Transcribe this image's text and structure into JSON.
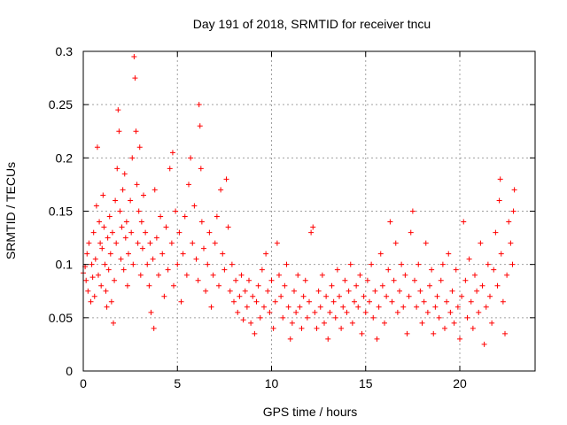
{
  "chart_data": {
    "type": "scatter",
    "title": "Day 191 of 2018, SRMTID for receiver tncu",
    "xlabel": "GPS time / hours",
    "ylabel": "SRMTID / TECUs",
    "xlim": [
      0,
      24
    ],
    "ylim": [
      0,
      0.3
    ],
    "xticks": [
      0,
      5,
      10,
      15,
      20
    ],
    "xtick_labels": [
      "0",
      "5",
      "10",
      "15",
      "20"
    ],
    "yticks": [
      0,
      0.05,
      0.1,
      0.15,
      0.2,
      0.25,
      0.3
    ],
    "ytick_labels": [
      "0",
      "0.05",
      "0.1",
      "0.15",
      "0.2",
      "0.25",
      "0.3"
    ],
    "grid": true,
    "legend": "none",
    "marker": "+",
    "series_color": "#ff0000",
    "points": [
      [
        0.0,
        0.092
      ],
      [
        0.1,
        0.098
      ],
      [
        0.15,
        0.085
      ],
      [
        0.2,
        0.11
      ],
      [
        0.25,
        0.075
      ],
      [
        0.3,
        0.12
      ],
      [
        0.4,
        0.065
      ],
      [
        0.45,
        0.1
      ],
      [
        0.5,
        0.088
      ],
      [
        0.55,
        0.13
      ],
      [
        0.6,
        0.07
      ],
      [
        0.65,
        0.105
      ],
      [
        0.7,
        0.155
      ],
      [
        0.75,
        0.21
      ],
      [
        0.8,
        0.09
      ],
      [
        0.85,
        0.14
      ],
      [
        0.9,
        0.12
      ],
      [
        0.95,
        0.08
      ],
      [
        1.0,
        0.115
      ],
      [
        1.05,
        0.165
      ],
      [
        1.1,
        0.135
      ],
      [
        1.15,
        0.1
      ],
      [
        1.2,
        0.075
      ],
      [
        1.25,
        0.06
      ],
      [
        1.3,
        0.125
      ],
      [
        1.35,
        0.095
      ],
      [
        1.4,
        0.145
      ],
      [
        1.45,
        0.11
      ],
      [
        1.5,
        0.065
      ],
      [
        1.55,
        0.13
      ],
      [
        1.6,
        0.045
      ],
      [
        1.65,
        0.085
      ],
      [
        1.7,
        0.16
      ],
      [
        1.75,
        0.12
      ],
      [
        1.8,
        0.19
      ],
      [
        1.85,
        0.245
      ],
      [
        1.9,
        0.225
      ],
      [
        1.95,
        0.15
      ],
      [
        2.0,
        0.105
      ],
      [
        2.05,
        0.135
      ],
      [
        2.1,
        0.17
      ],
      [
        2.15,
        0.095
      ],
      [
        2.2,
        0.185
      ],
      [
        2.25,
        0.125
      ],
      [
        2.3,
        0.14
      ],
      [
        2.35,
        0.08
      ],
      [
        2.4,
        0.11
      ],
      [
        2.5,
        0.16
      ],
      [
        2.55,
        0.13
      ],
      [
        2.6,
        0.2
      ],
      [
        2.65,
        0.1
      ],
      [
        2.7,
        0.295
      ],
      [
        2.75,
        0.275
      ],
      [
        2.8,
        0.225
      ],
      [
        2.85,
        0.175
      ],
      [
        2.9,
        0.12
      ],
      [
        2.95,
        0.15
      ],
      [
        3.0,
        0.21
      ],
      [
        3.05,
        0.09
      ],
      [
        3.1,
        0.14
      ],
      [
        3.15,
        0.115
      ],
      [
        3.2,
        0.165
      ],
      [
        3.3,
        0.13
      ],
      [
        3.4,
        0.1
      ],
      [
        3.5,
        0.08
      ],
      [
        3.55,
        0.12
      ],
      [
        3.6,
        0.055
      ],
      [
        3.7,
        0.105
      ],
      [
        3.75,
        0.04
      ],
      [
        3.8,
        0.17
      ],
      [
        3.9,
        0.125
      ],
      [
        4.0,
        0.09
      ],
      [
        4.1,
        0.145
      ],
      [
        4.2,
        0.11
      ],
      [
        4.3,
        0.07
      ],
      [
        4.4,
        0.135
      ],
      [
        4.5,
        0.095
      ],
      [
        4.6,
        0.19
      ],
      [
        4.7,
        0.12
      ],
      [
        4.75,
        0.205
      ],
      [
        4.8,
        0.08
      ],
      [
        4.9,
        0.15
      ],
      [
        5.0,
        0.1
      ],
      [
        5.1,
        0.13
      ],
      [
        5.2,
        0.065
      ],
      [
        5.3,
        0.11
      ],
      [
        5.4,
        0.145
      ],
      [
        5.5,
        0.09
      ],
      [
        5.6,
        0.175
      ],
      [
        5.7,
        0.2
      ],
      [
        5.8,
        0.12
      ],
      [
        5.9,
        0.155
      ],
      [
        6.0,
        0.105
      ],
      [
        6.1,
        0.085
      ],
      [
        6.15,
        0.25
      ],
      [
        6.2,
        0.23
      ],
      [
        6.25,
        0.19
      ],
      [
        6.3,
        0.14
      ],
      [
        6.4,
        0.115
      ],
      [
        6.5,
        0.075
      ],
      [
        6.6,
        0.1
      ],
      [
        6.7,
        0.13
      ],
      [
        6.8,
        0.06
      ],
      [
        6.9,
        0.09
      ],
      [
        7.0,
        0.12
      ],
      [
        7.1,
        0.145
      ],
      [
        7.2,
        0.08
      ],
      [
        7.3,
        0.17
      ],
      [
        7.4,
        0.11
      ],
      [
        7.5,
        0.095
      ],
      [
        7.6,
        0.18
      ],
      [
        7.7,
        0.135
      ],
      [
        7.8,
        0.075
      ],
      [
        7.9,
        0.1
      ],
      [
        8.0,
        0.065
      ],
      [
        8.1,
        0.085
      ],
      [
        8.2,
        0.055
      ],
      [
        8.3,
        0.07
      ],
      [
        8.4,
        0.09
      ],
      [
        8.5,
        0.048
      ],
      [
        8.6,
        0.075
      ],
      [
        8.7,
        0.06
      ],
      [
        8.8,
        0.085
      ],
      [
        8.9,
        0.045
      ],
      [
        9.0,
        0.07
      ],
      [
        9.1,
        0.035
      ],
      [
        9.2,
        0.065
      ],
      [
        9.3,
        0.08
      ],
      [
        9.4,
        0.05
      ],
      [
        9.5,
        0.095
      ],
      [
        9.6,
        0.06
      ],
      [
        9.7,
        0.11
      ],
      [
        9.8,
        0.075
      ],
      [
        9.9,
        0.055
      ],
      [
        10.0,
        0.085
      ],
      [
        10.1,
        0.04
      ],
      [
        10.2,
        0.065
      ],
      [
        10.3,
        0.12
      ],
      [
        10.4,
        0.09
      ],
      [
        10.5,
        0.07
      ],
      [
        10.6,
        0.05
      ],
      [
        10.7,
        0.08
      ],
      [
        10.8,
        0.1
      ],
      [
        10.9,
        0.06
      ],
      [
        11.0,
        0.03
      ],
      [
        11.1,
        0.045
      ],
      [
        11.2,
        0.075
      ],
      [
        11.3,
        0.055
      ],
      [
        11.4,
        0.09
      ],
      [
        11.5,
        0.06
      ],
      [
        11.6,
        0.04
      ],
      [
        11.7,
        0.07
      ],
      [
        11.8,
        0.085
      ],
      [
        11.9,
        0.05
      ],
      [
        12.0,
        0.065
      ],
      [
        12.1,
        0.13
      ],
      [
        12.2,
        0.135
      ],
      [
        12.3,
        0.055
      ],
      [
        12.4,
        0.04
      ],
      [
        12.5,
        0.075
      ],
      [
        12.6,
        0.06
      ],
      [
        12.7,
        0.09
      ],
      [
        12.8,
        0.045
      ],
      [
        12.9,
        0.07
      ],
      [
        13.0,
        0.03
      ],
      [
        13.1,
        0.055
      ],
      [
        13.2,
        0.08
      ],
      [
        13.3,
        0.065
      ],
      [
        13.4,
        0.05
      ],
      [
        13.5,
        0.095
      ],
      [
        13.6,
        0.07
      ],
      [
        13.7,
        0.04
      ],
      [
        13.8,
        0.06
      ],
      [
        13.9,
        0.085
      ],
      [
        14.0,
        0.055
      ],
      [
        14.1,
        0.075
      ],
      [
        14.2,
        0.1
      ],
      [
        14.3,
        0.045
      ],
      [
        14.4,
        0.065
      ],
      [
        14.5,
        0.08
      ],
      [
        14.6,
        0.06
      ],
      [
        14.7,
        0.09
      ],
      [
        14.8,
        0.035
      ],
      [
        14.9,
        0.07
      ],
      [
        15.0,
        0.055
      ],
      [
        15.1,
        0.085
      ],
      [
        15.2,
        0.065
      ],
      [
        15.3,
        0.1
      ],
      [
        15.4,
        0.05
      ],
      [
        15.5,
        0.075
      ],
      [
        15.6,
        0.03
      ],
      [
        15.7,
        0.06
      ],
      [
        15.8,
        0.11
      ],
      [
        15.9,
        0.08
      ],
      [
        16.0,
        0.045
      ],
      [
        16.1,
        0.07
      ],
      [
        16.2,
        0.095
      ],
      [
        16.3,
        0.14
      ],
      [
        16.4,
        0.065
      ],
      [
        16.5,
        0.085
      ],
      [
        16.6,
        0.12
      ],
      [
        16.7,
        0.055
      ],
      [
        16.8,
        0.075
      ],
      [
        16.9,
        0.1
      ],
      [
        17.0,
        0.06
      ],
      [
        17.1,
        0.09
      ],
      [
        17.2,
        0.035
      ],
      [
        17.3,
        0.07
      ],
      [
        17.4,
        0.13
      ],
      [
        17.5,
        0.15
      ],
      [
        17.6,
        0.085
      ],
      [
        17.7,
        0.06
      ],
      [
        17.8,
        0.1
      ],
      [
        17.9,
        0.075
      ],
      [
        18.0,
        0.045
      ],
      [
        18.1,
        0.065
      ],
      [
        18.2,
        0.12
      ],
      [
        18.3,
        0.055
      ],
      [
        18.4,
        0.08
      ],
      [
        18.5,
        0.095
      ],
      [
        18.6,
        0.035
      ],
      [
        18.7,
        0.06
      ],
      [
        18.8,
        0.07
      ],
      [
        18.9,
        0.05
      ],
      [
        19.0,
        0.085
      ],
      [
        19.1,
        0.1
      ],
      [
        19.2,
        0.04
      ],
      [
        19.3,
        0.065
      ],
      [
        19.4,
        0.11
      ],
      [
        19.5,
        0.055
      ],
      [
        19.6,
        0.075
      ],
      [
        19.7,
        0.045
      ],
      [
        19.8,
        0.095
      ],
      [
        19.9,
        0.06
      ],
      [
        20.0,
        0.03
      ],
      [
        20.1,
        0.07
      ],
      [
        20.2,
        0.14
      ],
      [
        20.3,
        0.085
      ],
      [
        20.4,
        0.05
      ],
      [
        20.5,
        0.105
      ],
      [
        20.6,
        0.065
      ],
      [
        20.7,
        0.04
      ],
      [
        20.8,
        0.09
      ],
      [
        20.9,
        0.075
      ],
      [
        21.0,
        0.055
      ],
      [
        21.1,
        0.12
      ],
      [
        21.2,
        0.08
      ],
      [
        21.3,
        0.025
      ],
      [
        21.4,
        0.06
      ],
      [
        21.5,
        0.1
      ],
      [
        21.6,
        0.07
      ],
      [
        21.7,
        0.045
      ],
      [
        21.8,
        0.095
      ],
      [
        21.9,
        0.13
      ],
      [
        22.0,
        0.08
      ],
      [
        22.1,
        0.16
      ],
      [
        22.15,
        0.18
      ],
      [
        22.2,
        0.11
      ],
      [
        22.3,
        0.065
      ],
      [
        22.4,
        0.035
      ],
      [
        22.5,
        0.09
      ],
      [
        22.6,
        0.14
      ],
      [
        22.7,
        0.12
      ],
      [
        22.8,
        0.1
      ],
      [
        22.85,
        0.15
      ],
      [
        22.9,
        0.17
      ]
    ]
  }
}
